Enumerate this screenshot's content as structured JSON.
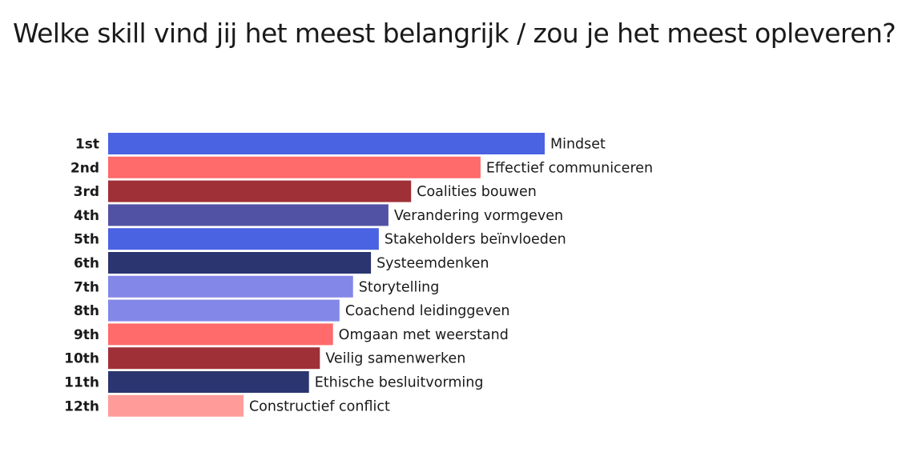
{
  "title": "Welke skill vind jij het meest belangrijk / zou je het meest opleveren?",
  "chart_data": {
    "type": "bar",
    "orientation": "horizontal",
    "title": "Welke skill vind jij het meest belangrijk / zou je het meest opleveren?",
    "xlabel": "",
    "ylabel": "",
    "grid": false,
    "legend": "none",
    "xlim": [
      0,
      100
    ],
    "bars": [
      {
        "rank": "1st",
        "label": "Mindset",
        "value": 100,
        "color": "#4a63e3"
      },
      {
        "rank": "2nd",
        "label": "Effectief communiceren",
        "value": 85.3,
        "color": "#ff6a6a"
      },
      {
        "rank": "3rd",
        "label": "Coalities bouwen",
        "value": 69.4,
        "color": "#a03037"
      },
      {
        "rank": "4th",
        "label": "Verandering vormgeven",
        "value": 64.2,
        "color": "#5252a5"
      },
      {
        "rank": "5th",
        "label": "Stakeholders beïnvloeden",
        "value": 62.0,
        "color": "#4a63e3"
      },
      {
        "rank": "6th",
        "label": "Systeemdenken",
        "value": 60.2,
        "color": "#2b3570"
      },
      {
        "rank": "7th",
        "label": "Storytelling",
        "value": 56.1,
        "color": "#8387e8"
      },
      {
        "rank": "8th",
        "label": "Coachend leidinggeven",
        "value": 53.0,
        "color": "#8387e8"
      },
      {
        "rank": "9th",
        "label": "Omgaan met weerstand",
        "value": 51.5,
        "color": "#ff6a6a"
      },
      {
        "rank": "10th",
        "label": "Veilig samenwerken",
        "value": 48.5,
        "color": "#a03037"
      },
      {
        "rank": "11th",
        "label": "Ethische besluitvorming",
        "value": 46.0,
        "color": "#2b3570"
      },
      {
        "rank": "12th",
        "label": "Constructief conflict",
        "value": 31.0,
        "color": "#ff9c9a"
      }
    ]
  }
}
